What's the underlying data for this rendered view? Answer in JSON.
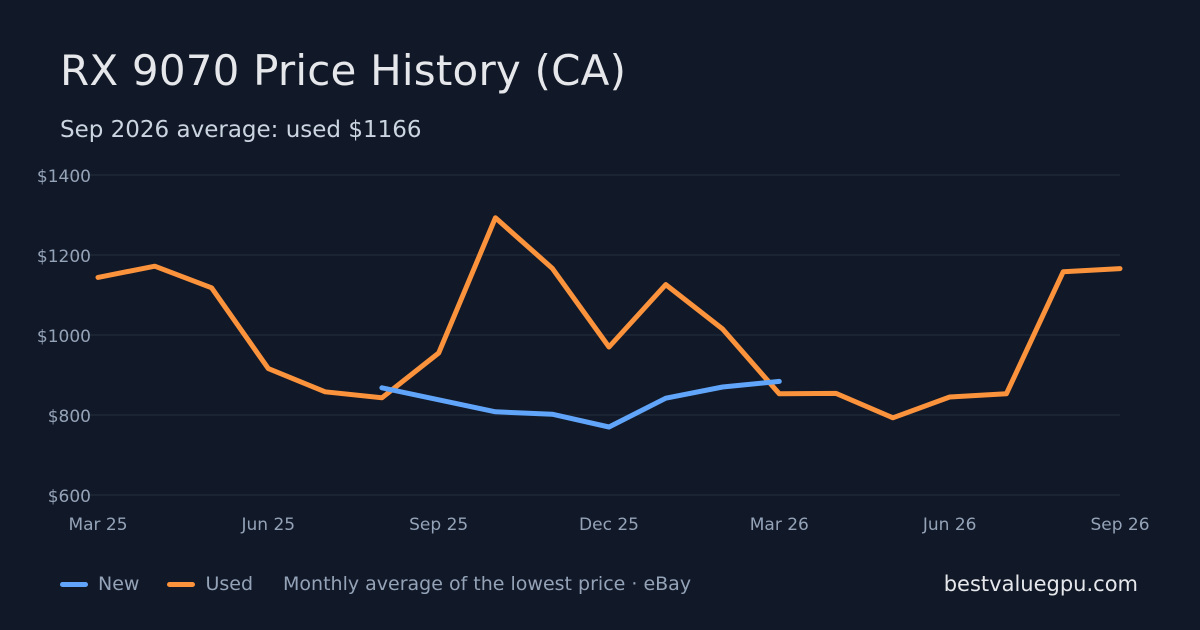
{
  "header": {
    "title": "RX 9070 Price History (CA)",
    "subtitle": "Sep 2026 average: used $1166"
  },
  "footer": {
    "note": "Monthly average of the lowest price · eBay",
    "site": "bestvaluegpu.com"
  },
  "colors": {
    "background": "#111827",
    "grid": "#1f2937",
    "new": "#60a5fa",
    "used": "#fb923c",
    "tick_text": "#94a3b8"
  },
  "chart_data": {
    "type": "line",
    "x": [
      "Mar 25",
      "Apr 25",
      "May 25",
      "Jun 25",
      "Jul 25",
      "Aug 25",
      "Sep 25",
      "Oct 25",
      "Nov 25",
      "Dec 25",
      "Jan 26",
      "Feb 26",
      "Mar 26",
      "Apr 26",
      "May 26",
      "Jun 26",
      "Jul 26",
      "Aug 26",
      "Sep 26"
    ],
    "x_tick_labels": [
      "Mar 25",
      "Jun 25",
      "Sep 25",
      "Dec 25",
      "Mar 26",
      "Jun 26",
      "Sep 26"
    ],
    "y_tick_labels": [
      "$600",
      "$800",
      "$1000",
      "$1200",
      "$1400"
    ],
    "y_ticks": [
      600,
      800,
      1000,
      1200,
      1400
    ],
    "ylim": [
      600,
      1400
    ],
    "grid": true,
    "legend_position": "bottom-left",
    "series": [
      {
        "name": "New",
        "color": "#60a5fa",
        "values": [
          null,
          null,
          null,
          null,
          null,
          868,
          838,
          808,
          802,
          770,
          842,
          870,
          884,
          null,
          null,
          null,
          null,
          null,
          null
        ]
      },
      {
        "name": "Used",
        "color": "#fb923c",
        "values": [
          1144,
          1172,
          1118,
          916,
          858,
          843,
          955,
          1293,
          1167,
          970,
          1126,
          1015,
          853,
          854,
          793,
          845,
          853,
          1158,
          1166
        ]
      }
    ]
  }
}
